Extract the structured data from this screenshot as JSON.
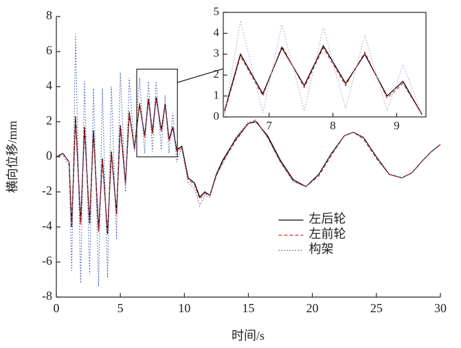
{
  "chart_data": [
    {
      "type": "line",
      "x_label": "时间/s",
      "y_label": "横向位移/mm",
      "x": [
        0,
        0.5,
        1.0,
        1.2,
        1.5,
        1.9,
        2.2,
        2.6,
        2.9,
        3.3,
        3.6,
        4.0,
        4.3,
        4.7,
        5.0,
        5.4,
        5.7,
        6.1,
        6.5,
        6.9,
        7.2,
        7.5,
        7.8,
        8.2,
        8.5,
        8.8,
        9.1,
        9.4,
        9.8,
        10.3,
        10.8,
        11.2,
        11.6,
        12.0,
        12.5,
        13.0,
        14.0,
        15.0,
        15.6,
        16.5,
        17.5,
        18.5,
        19.5,
        20.5,
        21.5,
        22.5,
        23.2,
        24.0,
        25.0,
        26.0,
        27.0,
        27.8,
        28.5,
        29.3,
        30.0
      ],
      "series": [
        {
          "name": "左后轮",
          "color": "#000000",
          "dash": "solid",
          "values": [
            0,
            0.2,
            -0.3,
            -4.0,
            2.3,
            -3.8,
            1.7,
            -3.8,
            1.5,
            -4.2,
            -0.1,
            -4.4,
            0.3,
            -3.2,
            1.8,
            -1.5,
            2.5,
            0.5,
            3.0,
            1.2,
            3.3,
            1.4,
            3.4,
            1.5,
            3.0,
            1.0,
            1.7,
            0.4,
            0.6,
            -1.2,
            -1.5,
            -2.3,
            -2.0,
            -2.2,
            -1.0,
            -0.2,
            1.0,
            1.9,
            2.0,
            1.2,
            -0.2,
            -1.3,
            -1.7,
            -1.0,
            0.2,
            1.2,
            1.4,
            1.1,
            0.0,
            -1.0,
            -1.2,
            -0.9,
            -0.3,
            0.3,
            0.7
          ]
        },
        {
          "name": "左前轮",
          "color": "#d62728",
          "dash": "dashed",
          "values": [
            0,
            0.2,
            -0.3,
            -3.9,
            2.2,
            -3.9,
            1.6,
            -3.7,
            1.4,
            -4.3,
            -0.2,
            -4.3,
            0.2,
            -3.3,
            1.7,
            -1.6,
            2.6,
            0.4,
            3.1,
            1.1,
            3.2,
            1.3,
            3.3,
            1.4,
            2.9,
            0.9,
            1.6,
            0.3,
            0.5,
            -1.3,
            -1.6,
            -2.4,
            -2.1,
            -2.2,
            -1.1,
            -0.3,
            0.9,
            1.9,
            2.1,
            1.1,
            -0.3,
            -1.4,
            -1.7,
            -1.1,
            0.1,
            1.2,
            1.4,
            1.0,
            -0.1,
            -1.0,
            -1.2,
            -0.9,
            -0.3,
            0.3,
            0.7
          ]
        },
        {
          "name": "构架",
          "color": "#3a4fb0",
          "dash": "dotted",
          "values": [
            0,
            0.1,
            -0.5,
            -6.5,
            7.0,
            -7.2,
            4.3,
            -6.7,
            3.9,
            -7.4,
            3.9,
            -6.9,
            4.0,
            -4.7,
            4.8,
            -2.0,
            4.5,
            0.3,
            4.5,
            0.2,
            4.3,
            0.3,
            4.3,
            0.4,
            3.5,
            0.2,
            2.5,
            -0.3,
            0.5,
            -1.5,
            -1.8,
            -2.8,
            -2.2,
            -2.3,
            -1.0,
            -0.4,
            1.1,
            2.0,
            2.0,
            1.1,
            -0.3,
            -1.4,
            -1.7,
            -1.0,
            0.2,
            1.2,
            1.4,
            1.1,
            0.0,
            -1.0,
            -1.2,
            -0.9,
            -0.3,
            0.3,
            0.7
          ]
        }
      ],
      "xlim": [
        0,
        30
      ],
      "xticks": [
        0,
        5,
        10,
        15,
        20,
        25,
        30
      ],
      "ylim": [
        -8,
        8
      ],
      "yticks": [
        -8,
        -6,
        -4,
        -2,
        0,
        2,
        4,
        6,
        8
      ],
      "legend": "lower-center"
    },
    {
      "type": "line",
      "x": [
        6.3,
        6.55,
        6.9,
        7.2,
        7.55,
        7.85,
        8.2,
        8.5,
        8.85,
        9.1,
        9.4
      ],
      "series": [
        {
          "color": "#000000",
          "dash": "solid",
          "values": [
            0.3,
            3.0,
            1.1,
            3.3,
            1.5,
            3.4,
            1.6,
            3.0,
            1.0,
            1.7,
            0.1
          ]
        },
        {
          "color": "#d62728",
          "dash": "dashed",
          "values": [
            0.2,
            2.9,
            1.0,
            3.4,
            1.4,
            3.3,
            1.5,
            3.1,
            0.9,
            1.6,
            0.1
          ]
        },
        {
          "color": "#9aa3d8",
          "dash": "dotted",
          "values": [
            0.1,
            4.6,
            0.2,
            4.4,
            0.3,
            4.3,
            0.4,
            3.9,
            0.3,
            2.5,
            0.1
          ]
        }
      ],
      "xlim": [
        6.28,
        9.46
      ],
      "xticks": [
        7,
        8,
        9
      ],
      "ylim": [
        0,
        5
      ],
      "yticks": [
        0,
        1,
        2,
        3,
        4,
        5
      ]
    }
  ]
}
